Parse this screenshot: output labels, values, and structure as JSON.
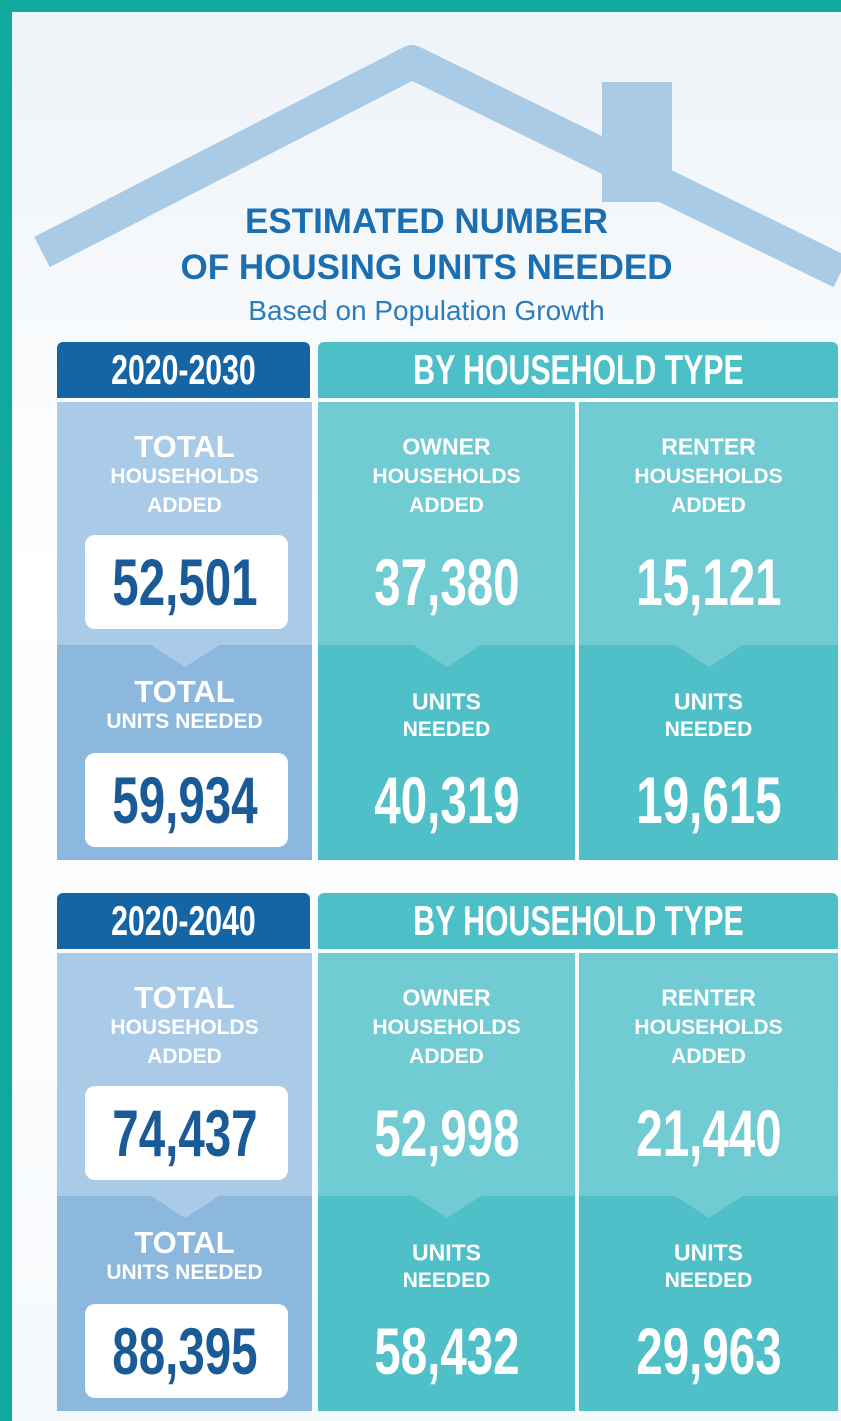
{
  "title": [
    "ESTIMATED NUMBER",
    "OF HOUSING UNITS NEEDED"
  ],
  "subtitle": "Based on Population Growth",
  "sections": [
    {
      "period": "2020-2030",
      "header": "BY HOUSEHOLD TYPE",
      "cells": [
        {
          "lines": [
            "TOTAL",
            "HOUSEHOLDS",
            "ADDED"
          ],
          "value": "52,501"
        },
        {
          "lines": [
            "OWNER",
            "HOUSEHOLDS",
            "ADDED"
          ],
          "value": "37,380"
        },
        {
          "lines": [
            "RENTER",
            "HOUSEHOLDS",
            "ADDED"
          ],
          "value": "15,121"
        },
        {
          "lines": [
            "TOTAL",
            "UNITS NEEDED"
          ],
          "value": "59,934"
        },
        {
          "lines": [
            "UNITS",
            "NEEDED"
          ],
          "value": "40,319"
        },
        {
          "lines": [
            "UNITS",
            "NEEDED"
          ],
          "value": "19,615"
        }
      ]
    },
    {
      "period": "2020-2040",
      "header": "BY HOUSEHOLD TYPE",
      "cells": [
        {
          "lines": [
            "TOTAL",
            "HOUSEHOLDS",
            "ADDED"
          ],
          "value": "74,437"
        },
        {
          "lines": [
            "OWNER",
            "HOUSEHOLDS",
            "ADDED"
          ],
          "value": "52,998"
        },
        {
          "lines": [
            "RENTER",
            "HOUSEHOLDS",
            "ADDED"
          ],
          "value": "21,440"
        },
        {
          "lines": [
            "TOTAL",
            "UNITS NEEDED"
          ],
          "value": "88,395"
        },
        {
          "lines": [
            "UNITS",
            "NEEDED"
          ],
          "value": "58,432"
        },
        {
          "lines": [
            "UNITS",
            "NEEDED"
          ],
          "value": "29,963"
        }
      ]
    }
  ]
}
